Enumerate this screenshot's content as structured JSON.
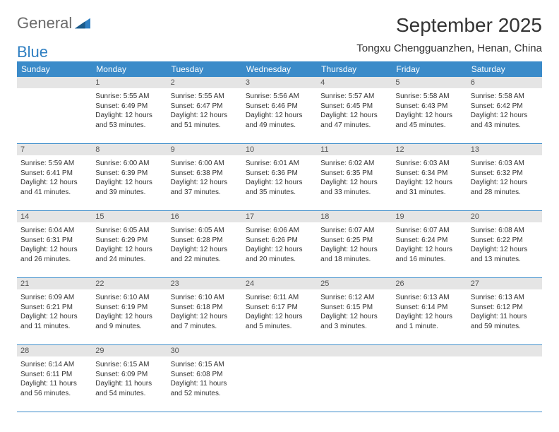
{
  "logo": {
    "text1": "General",
    "text2": "Blue"
  },
  "title": "September 2025",
  "location": "Tongxu Chengguanzhen, Henan, China",
  "colors": {
    "header_bg": "#3b8bc9",
    "header_text": "#ffffff",
    "daynum_bg": "#e5e5e5",
    "border": "#3b8bc9",
    "logo_gray": "#6b6b6b",
    "logo_blue": "#2f7fc2"
  },
  "weekdays": [
    "Sunday",
    "Monday",
    "Tuesday",
    "Wednesday",
    "Thursday",
    "Friday",
    "Saturday"
  ],
  "weeks": [
    {
      "nums": [
        "",
        "1",
        "2",
        "3",
        "4",
        "5",
        "6"
      ],
      "cells": [
        null,
        {
          "sunrise": "Sunrise: 5:55 AM",
          "sunset": "Sunset: 6:49 PM",
          "day1": "Daylight: 12 hours",
          "day2": "and 53 minutes."
        },
        {
          "sunrise": "Sunrise: 5:55 AM",
          "sunset": "Sunset: 6:47 PM",
          "day1": "Daylight: 12 hours",
          "day2": "and 51 minutes."
        },
        {
          "sunrise": "Sunrise: 5:56 AM",
          "sunset": "Sunset: 6:46 PM",
          "day1": "Daylight: 12 hours",
          "day2": "and 49 minutes."
        },
        {
          "sunrise": "Sunrise: 5:57 AM",
          "sunset": "Sunset: 6:45 PM",
          "day1": "Daylight: 12 hours",
          "day2": "and 47 minutes."
        },
        {
          "sunrise": "Sunrise: 5:58 AM",
          "sunset": "Sunset: 6:43 PM",
          "day1": "Daylight: 12 hours",
          "day2": "and 45 minutes."
        },
        {
          "sunrise": "Sunrise: 5:58 AM",
          "sunset": "Sunset: 6:42 PM",
          "day1": "Daylight: 12 hours",
          "day2": "and 43 minutes."
        }
      ]
    },
    {
      "nums": [
        "7",
        "8",
        "9",
        "10",
        "11",
        "12",
        "13"
      ],
      "cells": [
        {
          "sunrise": "Sunrise: 5:59 AM",
          "sunset": "Sunset: 6:41 PM",
          "day1": "Daylight: 12 hours",
          "day2": "and 41 minutes."
        },
        {
          "sunrise": "Sunrise: 6:00 AM",
          "sunset": "Sunset: 6:39 PM",
          "day1": "Daylight: 12 hours",
          "day2": "and 39 minutes."
        },
        {
          "sunrise": "Sunrise: 6:00 AM",
          "sunset": "Sunset: 6:38 PM",
          "day1": "Daylight: 12 hours",
          "day2": "and 37 minutes."
        },
        {
          "sunrise": "Sunrise: 6:01 AM",
          "sunset": "Sunset: 6:36 PM",
          "day1": "Daylight: 12 hours",
          "day2": "and 35 minutes."
        },
        {
          "sunrise": "Sunrise: 6:02 AM",
          "sunset": "Sunset: 6:35 PM",
          "day1": "Daylight: 12 hours",
          "day2": "and 33 minutes."
        },
        {
          "sunrise": "Sunrise: 6:03 AM",
          "sunset": "Sunset: 6:34 PM",
          "day1": "Daylight: 12 hours",
          "day2": "and 31 minutes."
        },
        {
          "sunrise": "Sunrise: 6:03 AM",
          "sunset": "Sunset: 6:32 PM",
          "day1": "Daylight: 12 hours",
          "day2": "and 28 minutes."
        }
      ]
    },
    {
      "nums": [
        "14",
        "15",
        "16",
        "17",
        "18",
        "19",
        "20"
      ],
      "cells": [
        {
          "sunrise": "Sunrise: 6:04 AM",
          "sunset": "Sunset: 6:31 PM",
          "day1": "Daylight: 12 hours",
          "day2": "and 26 minutes."
        },
        {
          "sunrise": "Sunrise: 6:05 AM",
          "sunset": "Sunset: 6:29 PM",
          "day1": "Daylight: 12 hours",
          "day2": "and 24 minutes."
        },
        {
          "sunrise": "Sunrise: 6:05 AM",
          "sunset": "Sunset: 6:28 PM",
          "day1": "Daylight: 12 hours",
          "day2": "and 22 minutes."
        },
        {
          "sunrise": "Sunrise: 6:06 AM",
          "sunset": "Sunset: 6:26 PM",
          "day1": "Daylight: 12 hours",
          "day2": "and 20 minutes."
        },
        {
          "sunrise": "Sunrise: 6:07 AM",
          "sunset": "Sunset: 6:25 PM",
          "day1": "Daylight: 12 hours",
          "day2": "and 18 minutes."
        },
        {
          "sunrise": "Sunrise: 6:07 AM",
          "sunset": "Sunset: 6:24 PM",
          "day1": "Daylight: 12 hours",
          "day2": "and 16 minutes."
        },
        {
          "sunrise": "Sunrise: 6:08 AM",
          "sunset": "Sunset: 6:22 PM",
          "day1": "Daylight: 12 hours",
          "day2": "and 13 minutes."
        }
      ]
    },
    {
      "nums": [
        "21",
        "22",
        "23",
        "24",
        "25",
        "26",
        "27"
      ],
      "cells": [
        {
          "sunrise": "Sunrise: 6:09 AM",
          "sunset": "Sunset: 6:21 PM",
          "day1": "Daylight: 12 hours",
          "day2": "and 11 minutes."
        },
        {
          "sunrise": "Sunrise: 6:10 AM",
          "sunset": "Sunset: 6:19 PM",
          "day1": "Daylight: 12 hours",
          "day2": "and 9 minutes."
        },
        {
          "sunrise": "Sunrise: 6:10 AM",
          "sunset": "Sunset: 6:18 PM",
          "day1": "Daylight: 12 hours",
          "day2": "and 7 minutes."
        },
        {
          "sunrise": "Sunrise: 6:11 AM",
          "sunset": "Sunset: 6:17 PM",
          "day1": "Daylight: 12 hours",
          "day2": "and 5 minutes."
        },
        {
          "sunrise": "Sunrise: 6:12 AM",
          "sunset": "Sunset: 6:15 PM",
          "day1": "Daylight: 12 hours",
          "day2": "and 3 minutes."
        },
        {
          "sunrise": "Sunrise: 6:13 AM",
          "sunset": "Sunset: 6:14 PM",
          "day1": "Daylight: 12 hours",
          "day2": "and 1 minute."
        },
        {
          "sunrise": "Sunrise: 6:13 AM",
          "sunset": "Sunset: 6:12 PM",
          "day1": "Daylight: 11 hours",
          "day2": "and 59 minutes."
        }
      ]
    },
    {
      "nums": [
        "28",
        "29",
        "30",
        "",
        "",
        "",
        ""
      ],
      "cells": [
        {
          "sunrise": "Sunrise: 6:14 AM",
          "sunset": "Sunset: 6:11 PM",
          "day1": "Daylight: 11 hours",
          "day2": "and 56 minutes."
        },
        {
          "sunrise": "Sunrise: 6:15 AM",
          "sunset": "Sunset: 6:09 PM",
          "day1": "Daylight: 11 hours",
          "day2": "and 54 minutes."
        },
        {
          "sunrise": "Sunrise: 6:15 AM",
          "sunset": "Sunset: 6:08 PM",
          "day1": "Daylight: 11 hours",
          "day2": "and 52 minutes."
        },
        null,
        null,
        null,
        null
      ]
    }
  ]
}
